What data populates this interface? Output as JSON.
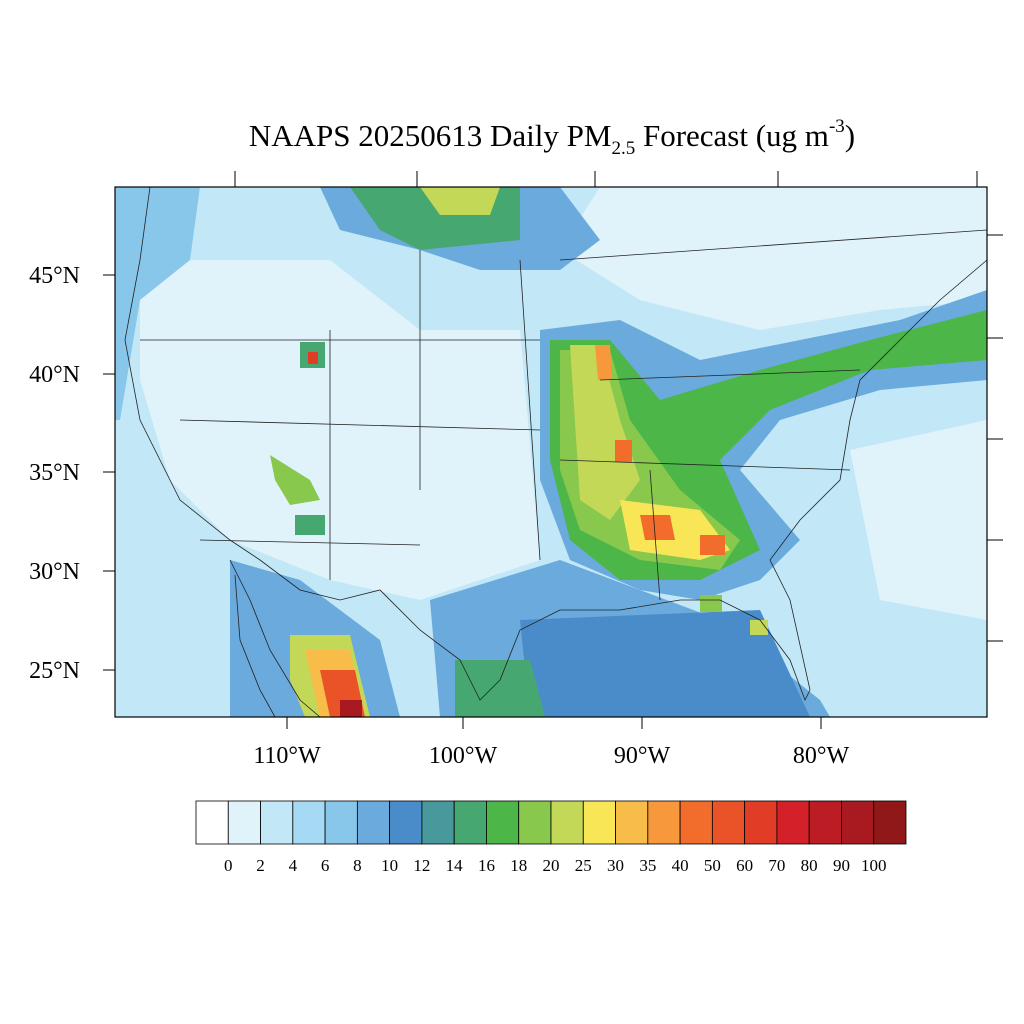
{
  "title": {
    "main": "NAAPS 20250613 Daily PM",
    "subscript": "2.5",
    "rest": " Forecast (ug m",
    "superscript": "-3",
    "close": ")"
  },
  "lat_labels": [
    "45°N",
    "40°N",
    "35°N",
    "30°N",
    "25°N"
  ],
  "lon_labels": [
    "110°W",
    "100°W",
    "90°W",
    "80°W"
  ],
  "legend": {
    "levels": [
      0,
      2,
      4,
      6,
      8,
      10,
      12,
      14,
      16,
      18,
      20,
      25,
      30,
      35,
      40,
      50,
      60,
      70,
      80,
      90,
      100
    ],
    "colors": [
      "#ffffff",
      "#e0f3fb",
      "#c2e8f8",
      "#a6daf4",
      "#88c6ea",
      "#6aaadc",
      "#4a8cca",
      "#48999c",
      "#46a870",
      "#4cb648",
      "#88c84c",
      "#c4d858",
      "#f8e656",
      "#f8bc48",
      "#f7983c",
      "#f26c2c",
      "#ea5228",
      "#e03c26",
      "#d42028",
      "#bc1c24",
      "#a81a20",
      "#901818"
    ]
  }
}
